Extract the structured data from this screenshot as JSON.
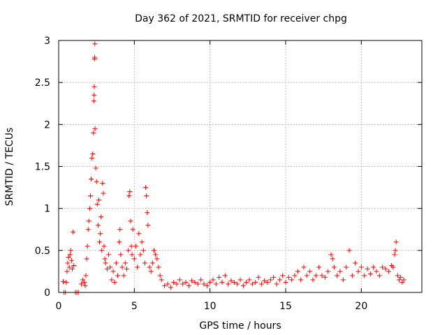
{
  "chart_data": {
    "type": "scatter",
    "title": "Day 362 of 2021, SRMTID for receiver chpg",
    "xlabel": "GPS time / hours",
    "ylabel": "SRMTID / TECUs",
    "xlim": [
      0,
      24
    ],
    "ylim": [
      0,
      3
    ],
    "x_ticks": [
      0,
      5,
      10,
      15,
      20
    ],
    "x_tick_labels": [
      "0",
      "5",
      "10",
      "15",
      "20"
    ],
    "y_ticks": [
      0,
      0.5,
      1,
      1.5,
      2,
      2.5,
      3
    ],
    "y_tick_labels": [
      "0",
      "0.5",
      "1",
      "1.5",
      "2",
      "2.5",
      "3"
    ],
    "grid": true,
    "marker": "+",
    "color": "#ff0000",
    "series": [
      {
        "name": "SRMTID",
        "points": [
          [
            0.3,
            0.13
          ],
          [
            0.35,
            0.0
          ],
          [
            0.45,
            0.0
          ],
          [
            0.5,
            0.12
          ],
          [
            0.55,
            0.25
          ],
          [
            0.6,
            0.35
          ],
          [
            0.65,
            0.42
          ],
          [
            0.7,
            0.3
          ],
          [
            0.75,
            0.45
          ],
          [
            0.8,
            0.5
          ],
          [
            0.85,
            0.38
          ],
          [
            0.9,
            0.28
          ],
          [
            0.95,
            0.72
          ],
          [
            1.0,
            0.32
          ],
          [
            1.1,
            0.0
          ],
          [
            1.2,
            0.0
          ],
          [
            1.3,
            0.0
          ],
          [
            1.5,
            0.1
          ],
          [
            1.6,
            0.15
          ],
          [
            1.7,
            0.12
          ],
          [
            1.75,
            0.08
          ],
          [
            1.8,
            0.2
          ],
          [
            1.85,
            0.4
          ],
          [
            1.9,
            0.55
          ],
          [
            1.95,
            0.75
          ],
          [
            2.0,
            0.85
          ],
          [
            2.05,
            1.0
          ],
          [
            2.1,
            1.15
          ],
          [
            2.15,
            1.35
          ],
          [
            2.2,
            1.6
          ],
          [
            2.25,
            1.65
          ],
          [
            2.3,
            1.9
          ],
          [
            2.32,
            2.28
          ],
          [
            2.34,
            2.35
          ],
          [
            2.35,
            2.45
          ],
          [
            2.37,
            2.78
          ],
          [
            2.38,
            2.8
          ],
          [
            2.39,
            2.96
          ],
          [
            2.4,
            1.95
          ],
          [
            2.45,
            1.48
          ],
          [
            2.5,
            1.32
          ],
          [
            2.55,
            1.05
          ],
          [
            2.6,
            0.8
          ],
          [
            2.65,
            1.1
          ],
          [
            2.7,
            0.6
          ],
          [
            2.75,
            0.7
          ],
          [
            2.8,
            0.9
          ],
          [
            2.85,
            0.5
          ],
          [
            2.9,
            1.3
          ],
          [
            2.95,
            1.18
          ],
          [
            3.0,
            0.55
          ],
          [
            3.05,
            0.4
          ],
          [
            3.1,
            0.35
          ],
          [
            3.2,
            0.28
          ],
          [
            3.3,
            0.45
          ],
          [
            3.4,
            0.3
          ],
          [
            3.5,
            0.15
          ],
          [
            3.6,
            0.25
          ],
          [
            3.7,
            0.12
          ],
          [
            3.8,
            0.35
          ],
          [
            3.9,
            0.2
          ],
          [
            4.0,
            0.6
          ],
          [
            4.05,
            0.75
          ],
          [
            4.1,
            0.45
          ],
          [
            4.2,
            0.3
          ],
          [
            4.3,
            0.2
          ],
          [
            4.4,
            0.35
          ],
          [
            4.5,
            0.28
          ],
          [
            4.6,
            0.5
          ],
          [
            4.65,
            1.15
          ],
          [
            4.7,
            1.2
          ],
          [
            4.75,
            0.85
          ],
          [
            4.8,
            0.55
          ],
          [
            4.85,
            0.45
          ],
          [
            4.9,
            0.75
          ],
          [
            5.0,
            0.4
          ],
          [
            5.1,
            0.55
          ],
          [
            5.2,
            0.3
          ],
          [
            5.3,
            0.7
          ],
          [
            5.4,
            0.45
          ],
          [
            5.5,
            0.6
          ],
          [
            5.6,
            0.5
          ],
          [
            5.7,
            0.35
          ],
          [
            5.75,
            1.25
          ],
          [
            5.8,
            1.15
          ],
          [
            5.85,
            0.95
          ],
          [
            5.9,
            0.8
          ],
          [
            6.0,
            0.3
          ],
          [
            6.1,
            0.25
          ],
          [
            6.2,
            0.35
          ],
          [
            6.3,
            0.5
          ],
          [
            6.4,
            0.45
          ],
          [
            6.5,
            0.4
          ],
          [
            6.6,
            0.3
          ],
          [
            6.7,
            0.2
          ],
          [
            6.8,
            0.15
          ],
          [
            7.0,
            0.08
          ],
          [
            7.2,
            0.1
          ],
          [
            7.4,
            0.06
          ],
          [
            7.6,
            0.12
          ],
          [
            7.8,
            0.1
          ],
          [
            8.0,
            0.15
          ],
          [
            8.2,
            0.1
          ],
          [
            8.4,
            0.12
          ],
          [
            8.6,
            0.08
          ],
          [
            8.8,
            0.14
          ],
          [
            9.0,
            0.12
          ],
          [
            9.2,
            0.1
          ],
          [
            9.4,
            0.15
          ],
          [
            9.6,
            0.1
          ],
          [
            9.8,
            0.08
          ],
          [
            10.0,
            0.12
          ],
          [
            10.2,
            0.15
          ],
          [
            10.4,
            0.1
          ],
          [
            10.6,
            0.18
          ],
          [
            10.8,
            0.12
          ],
          [
            11.0,
            0.2
          ],
          [
            11.2,
            0.1
          ],
          [
            11.4,
            0.14
          ],
          [
            11.6,
            0.12
          ],
          [
            11.8,
            0.1
          ],
          [
            12.0,
            0.15
          ],
          [
            12.2,
            0.08
          ],
          [
            12.4,
            0.12
          ],
          [
            12.6,
            0.15
          ],
          [
            12.8,
            0.1
          ],
          [
            13.0,
            0.12
          ],
          [
            13.2,
            0.18
          ],
          [
            13.4,
            0.1
          ],
          [
            13.6,
            0.14
          ],
          [
            13.8,
            0.12
          ],
          [
            14.0,
            0.15
          ],
          [
            14.2,
            0.18
          ],
          [
            14.4,
            0.1
          ],
          [
            14.6,
            0.15
          ],
          [
            14.8,
            0.2
          ],
          [
            15.0,
            0.12
          ],
          [
            15.2,
            0.18
          ],
          [
            15.4,
            0.15
          ],
          [
            15.6,
            0.2
          ],
          [
            15.8,
            0.25
          ],
          [
            16.0,
            0.15
          ],
          [
            16.2,
            0.3
          ],
          [
            16.4,
            0.2
          ],
          [
            16.6,
            0.25
          ],
          [
            16.8,
            0.15
          ],
          [
            17.0,
            0.2
          ],
          [
            17.2,
            0.3
          ],
          [
            17.4,
            0.2
          ],
          [
            17.6,
            0.18
          ],
          [
            17.8,
            0.25
          ],
          [
            18.0,
            0.45
          ],
          [
            18.1,
            0.4
          ],
          [
            18.2,
            0.3
          ],
          [
            18.4,
            0.2
          ],
          [
            18.6,
            0.25
          ],
          [
            18.8,
            0.15
          ],
          [
            19.0,
            0.3
          ],
          [
            19.2,
            0.5
          ],
          [
            19.4,
            0.2
          ],
          [
            19.6,
            0.35
          ],
          [
            19.8,
            0.25
          ],
          [
            20.0,
            0.3
          ],
          [
            20.2,
            0.2
          ],
          [
            20.4,
            0.28
          ],
          [
            20.6,
            0.22
          ],
          [
            20.8,
            0.3
          ],
          [
            21.0,
            0.25
          ],
          [
            21.2,
            0.2
          ],
          [
            21.4,
            0.3
          ],
          [
            21.6,
            0.28
          ],
          [
            21.8,
            0.25
          ],
          [
            22.0,
            0.32
          ],
          [
            22.1,
            0.3
          ],
          [
            22.2,
            0.45
          ],
          [
            22.25,
            0.5
          ],
          [
            22.3,
            0.6
          ],
          [
            22.4,
            0.2
          ],
          [
            22.5,
            0.15
          ],
          [
            22.6,
            0.18
          ],
          [
            22.7,
            0.12
          ],
          [
            22.8,
            0.15
          ]
        ]
      }
    ]
  }
}
